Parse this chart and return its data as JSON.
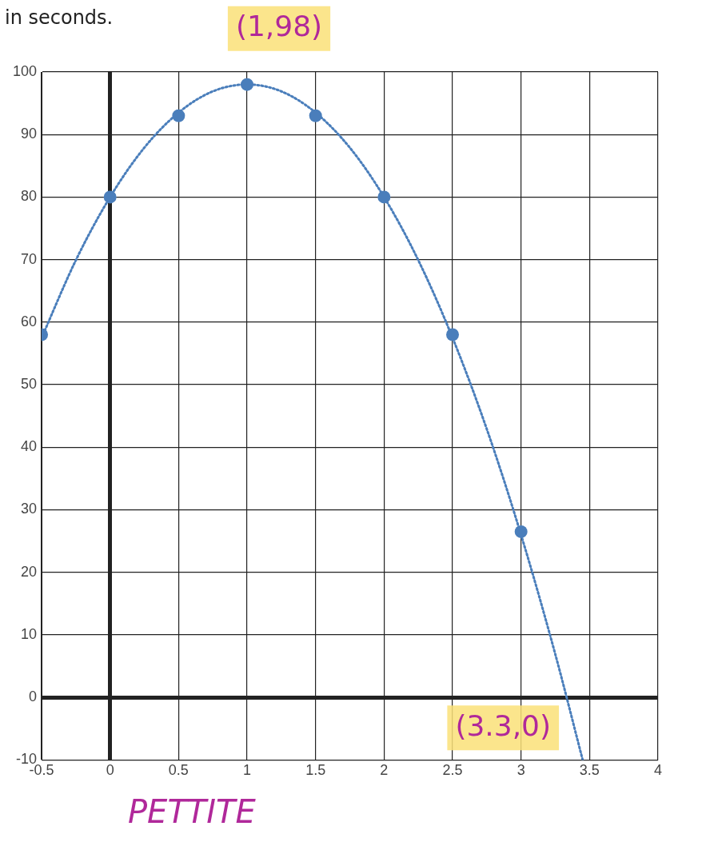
{
  "chart_data": {
    "type": "scatter",
    "series": [
      {
        "color": "#4a7ebb",
        "x": [
          -0.5,
          0,
          0.5,
          1,
          1.5,
          2,
          2.5,
          3
        ],
        "values": [
          58,
          80,
          93,
          98,
          93,
          80,
          58,
          26.5
        ],
        "marker": "circle"
      },
      {
        "type": "line",
        "color": "#4a7ebb",
        "line_style": "dotted",
        "marker": "none",
        "x": [
          -0.5,
          -0.25,
          0,
          0.25,
          0.5,
          0.75,
          1,
          1.25,
          1.5,
          1.75,
          2,
          2.25,
          2.5,
          2.75,
          3,
          3.25,
          3.45
        ],
        "values": [
          57.5,
          69.9,
          80,
          87.9,
          93.5,
          96.9,
          98,
          96.9,
          93.5,
          87.9,
          80,
          69.9,
          57.5,
          42.9,
          26,
          6.9,
          -10
        ]
      }
    ],
    "xlim": [
      -0.5,
      4
    ],
    "xticks": [
      -0.5,
      0,
      0.5,
      1,
      1.5,
      2,
      2.5,
      3,
      3.5,
      4
    ],
    "ylim": [
      -10,
      100
    ],
    "yticks": [
      -10,
      0,
      10,
      20,
      30,
      40,
      50,
      60,
      70,
      80,
      90,
      100
    ],
    "grid": true,
    "legend": false,
    "annotations": [
      "in seconds.",
      {
        "text": "(1,98)",
        "x": 1,
        "y": 98
      },
      {
        "text": "(3.3,0)",
        "x": 3.3,
        "y": 0
      },
      "PETTITE"
    ]
  }
}
